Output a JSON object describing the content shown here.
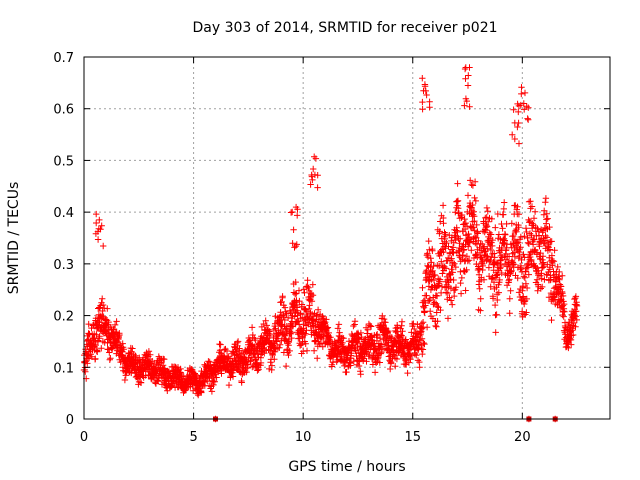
{
  "chart_data": {
    "type": "scatter",
    "title": "Day 303 of 2014, SRMTID for receiver p021",
    "xlabel": "GPS time / hours",
    "ylabel": "SRMTID / TECUs",
    "xlim": [
      0,
      24
    ],
    "ylim": [
      0,
      0.7
    ],
    "x_ticks": [
      "0",
      "5",
      "10",
      "15",
      "20"
    ],
    "x_tick_values": [
      0,
      5,
      10,
      15,
      20
    ],
    "y_ticks": [
      "0",
      "0.1",
      "0.2",
      "0.3",
      "0.4",
      "0.5",
      "0.6",
      "0.7"
    ],
    "y_tick_values": [
      0,
      0.1,
      0.2,
      0.3,
      0.4,
      0.5,
      0.6,
      0.7
    ],
    "grid": true,
    "marker": "plus",
    "color": "#ff0000",
    "marker_color": "#cc0000",
    "series_profile": {
      "name": "SRMTID",
      "x_range": [
        0,
        22.5
      ],
      "sample_step_hours": 0.0083,
      "trend_x": [
        0,
        0.5,
        1,
        1.5,
        2,
        2.5,
        3,
        3.5,
        4,
        4.5,
        5,
        5.5,
        6,
        6.5,
        7,
        7.5,
        8,
        8.5,
        9,
        9.5,
        10,
        10.5,
        11,
        11.5,
        12,
        12.5,
        13,
        13.5,
        14,
        14.5,
        15,
        15.3,
        15.5,
        16,
        16.5,
        17,
        17.5,
        18,
        18.5,
        19,
        19.5,
        20,
        20.5,
        21,
        21.5,
        22,
        22.5
      ],
      "trend_y": [
        0.09,
        0.17,
        0.18,
        0.14,
        0.11,
        0.1,
        0.1,
        0.09,
        0.08,
        0.075,
        0.07,
        0.08,
        0.1,
        0.11,
        0.11,
        0.12,
        0.14,
        0.15,
        0.17,
        0.19,
        0.2,
        0.19,
        0.16,
        0.13,
        0.13,
        0.14,
        0.14,
        0.15,
        0.15,
        0.14,
        0.14,
        0.15,
        0.22,
        0.28,
        0.3,
        0.32,
        0.38,
        0.34,
        0.32,
        0.3,
        0.33,
        0.3,
        0.34,
        0.33,
        0.28,
        0.16,
        0.2
      ],
      "spread": [
        0.04,
        0.08,
        0.06,
        0.05,
        0.04,
        0.04,
        0.04,
        0.04,
        0.04,
        0.03,
        0.04,
        0.04,
        0.04,
        0.04,
        0.05,
        0.06,
        0.06,
        0.07,
        0.08,
        0.09,
        0.1,
        0.08,
        0.05,
        0.05,
        0.05,
        0.06,
        0.06,
        0.06,
        0.06,
        0.06,
        0.06,
        0.07,
        0.12,
        0.14,
        0.14,
        0.15,
        0.14,
        0.14,
        0.14,
        0.14,
        0.13,
        0.13,
        0.13,
        0.13,
        0.12,
        0.05,
        0.05
      ],
      "peaks": [
        [
          0.7,
          0.4
        ],
        [
          9.6,
          0.41
        ],
        [
          10.5,
          0.51
        ],
        [
          15.6,
          0.66
        ],
        [
          17.5,
          0.68
        ],
        [
          19.7,
          0.61
        ],
        [
          20.1,
          0.65
        ]
      ],
      "zero_points": [
        6.0,
        20.3,
        21.5
      ]
    }
  }
}
